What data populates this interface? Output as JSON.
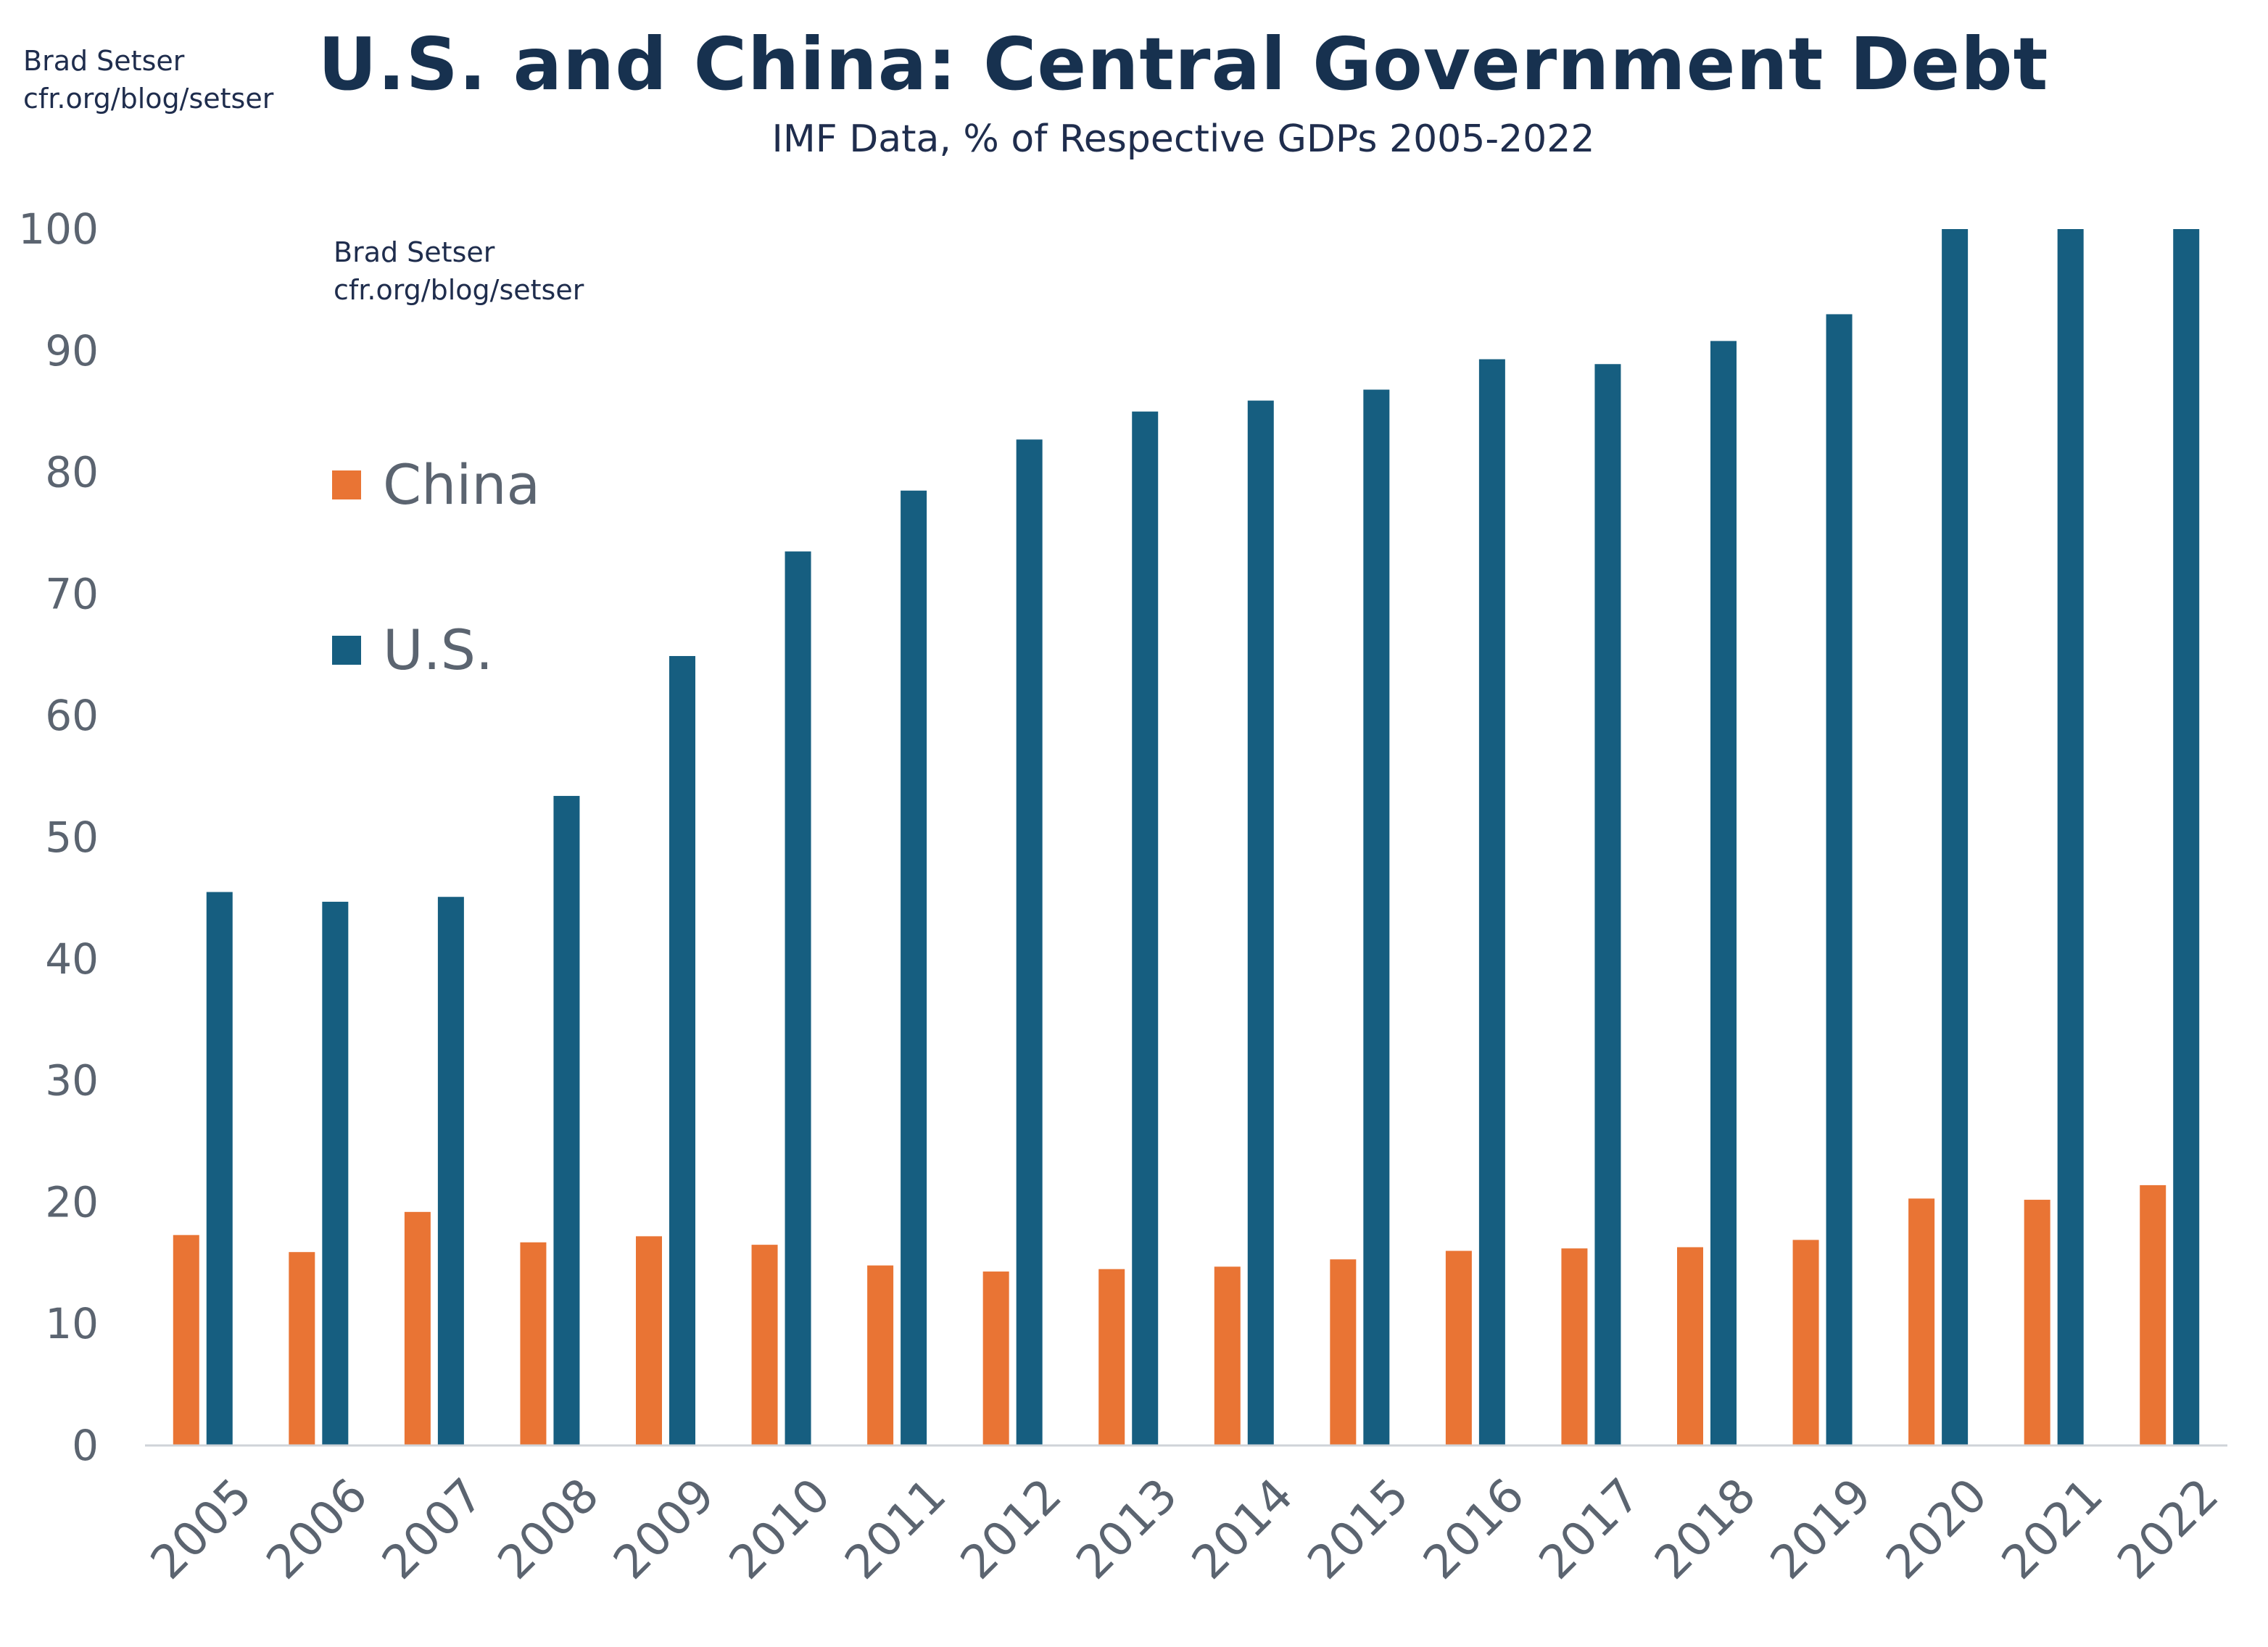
{
  "credit_top": {
    "line1": "Brad Setser",
    "line2": "cfr.org/blog/setser"
  },
  "credit_inner": {
    "line1": "Brad Setser",
    "line2": "cfr.org/blog/setser"
  },
  "chart_data": {
    "type": "bar",
    "title": "U.S. and China: Central Government Debt",
    "subtitle": "IMF Data, % of Respective GDPs 2005-2022",
    "xlabel": "",
    "ylabel": "",
    "ylim": [
      0,
      100
    ],
    "yticks": [
      0,
      10,
      20,
      30,
      40,
      50,
      60,
      70,
      80,
      90,
      100
    ],
    "grid": false,
    "legend_position": "left-inside",
    "categories": [
      "2005",
      "2006",
      "2007",
      "2008",
      "2009",
      "2010",
      "2011",
      "2012",
      "2013",
      "2014",
      "2015",
      "2016",
      "2017",
      "2018",
      "2019",
      "2020",
      "2021",
      "2022"
    ],
    "series": [
      {
        "name": "China",
        "color": "#e97434",
        "values": [
          17.3,
          15.9,
          19.2,
          16.7,
          17.2,
          16.5,
          14.8,
          14.3,
          14.5,
          14.7,
          15.3,
          16.0,
          16.2,
          16.3,
          16.9,
          20.3,
          20.2,
          21.4
        ]
      },
      {
        "name": "U.S.",
        "color": "#165e80",
        "values": [
          45.5,
          44.7,
          45.1,
          53.4,
          64.9,
          73.5,
          78.5,
          82.7,
          85.0,
          85.9,
          86.8,
          89.3,
          88.9,
          90.8,
          93.0,
          100,
          100,
          100
        ]
      }
    ]
  }
}
